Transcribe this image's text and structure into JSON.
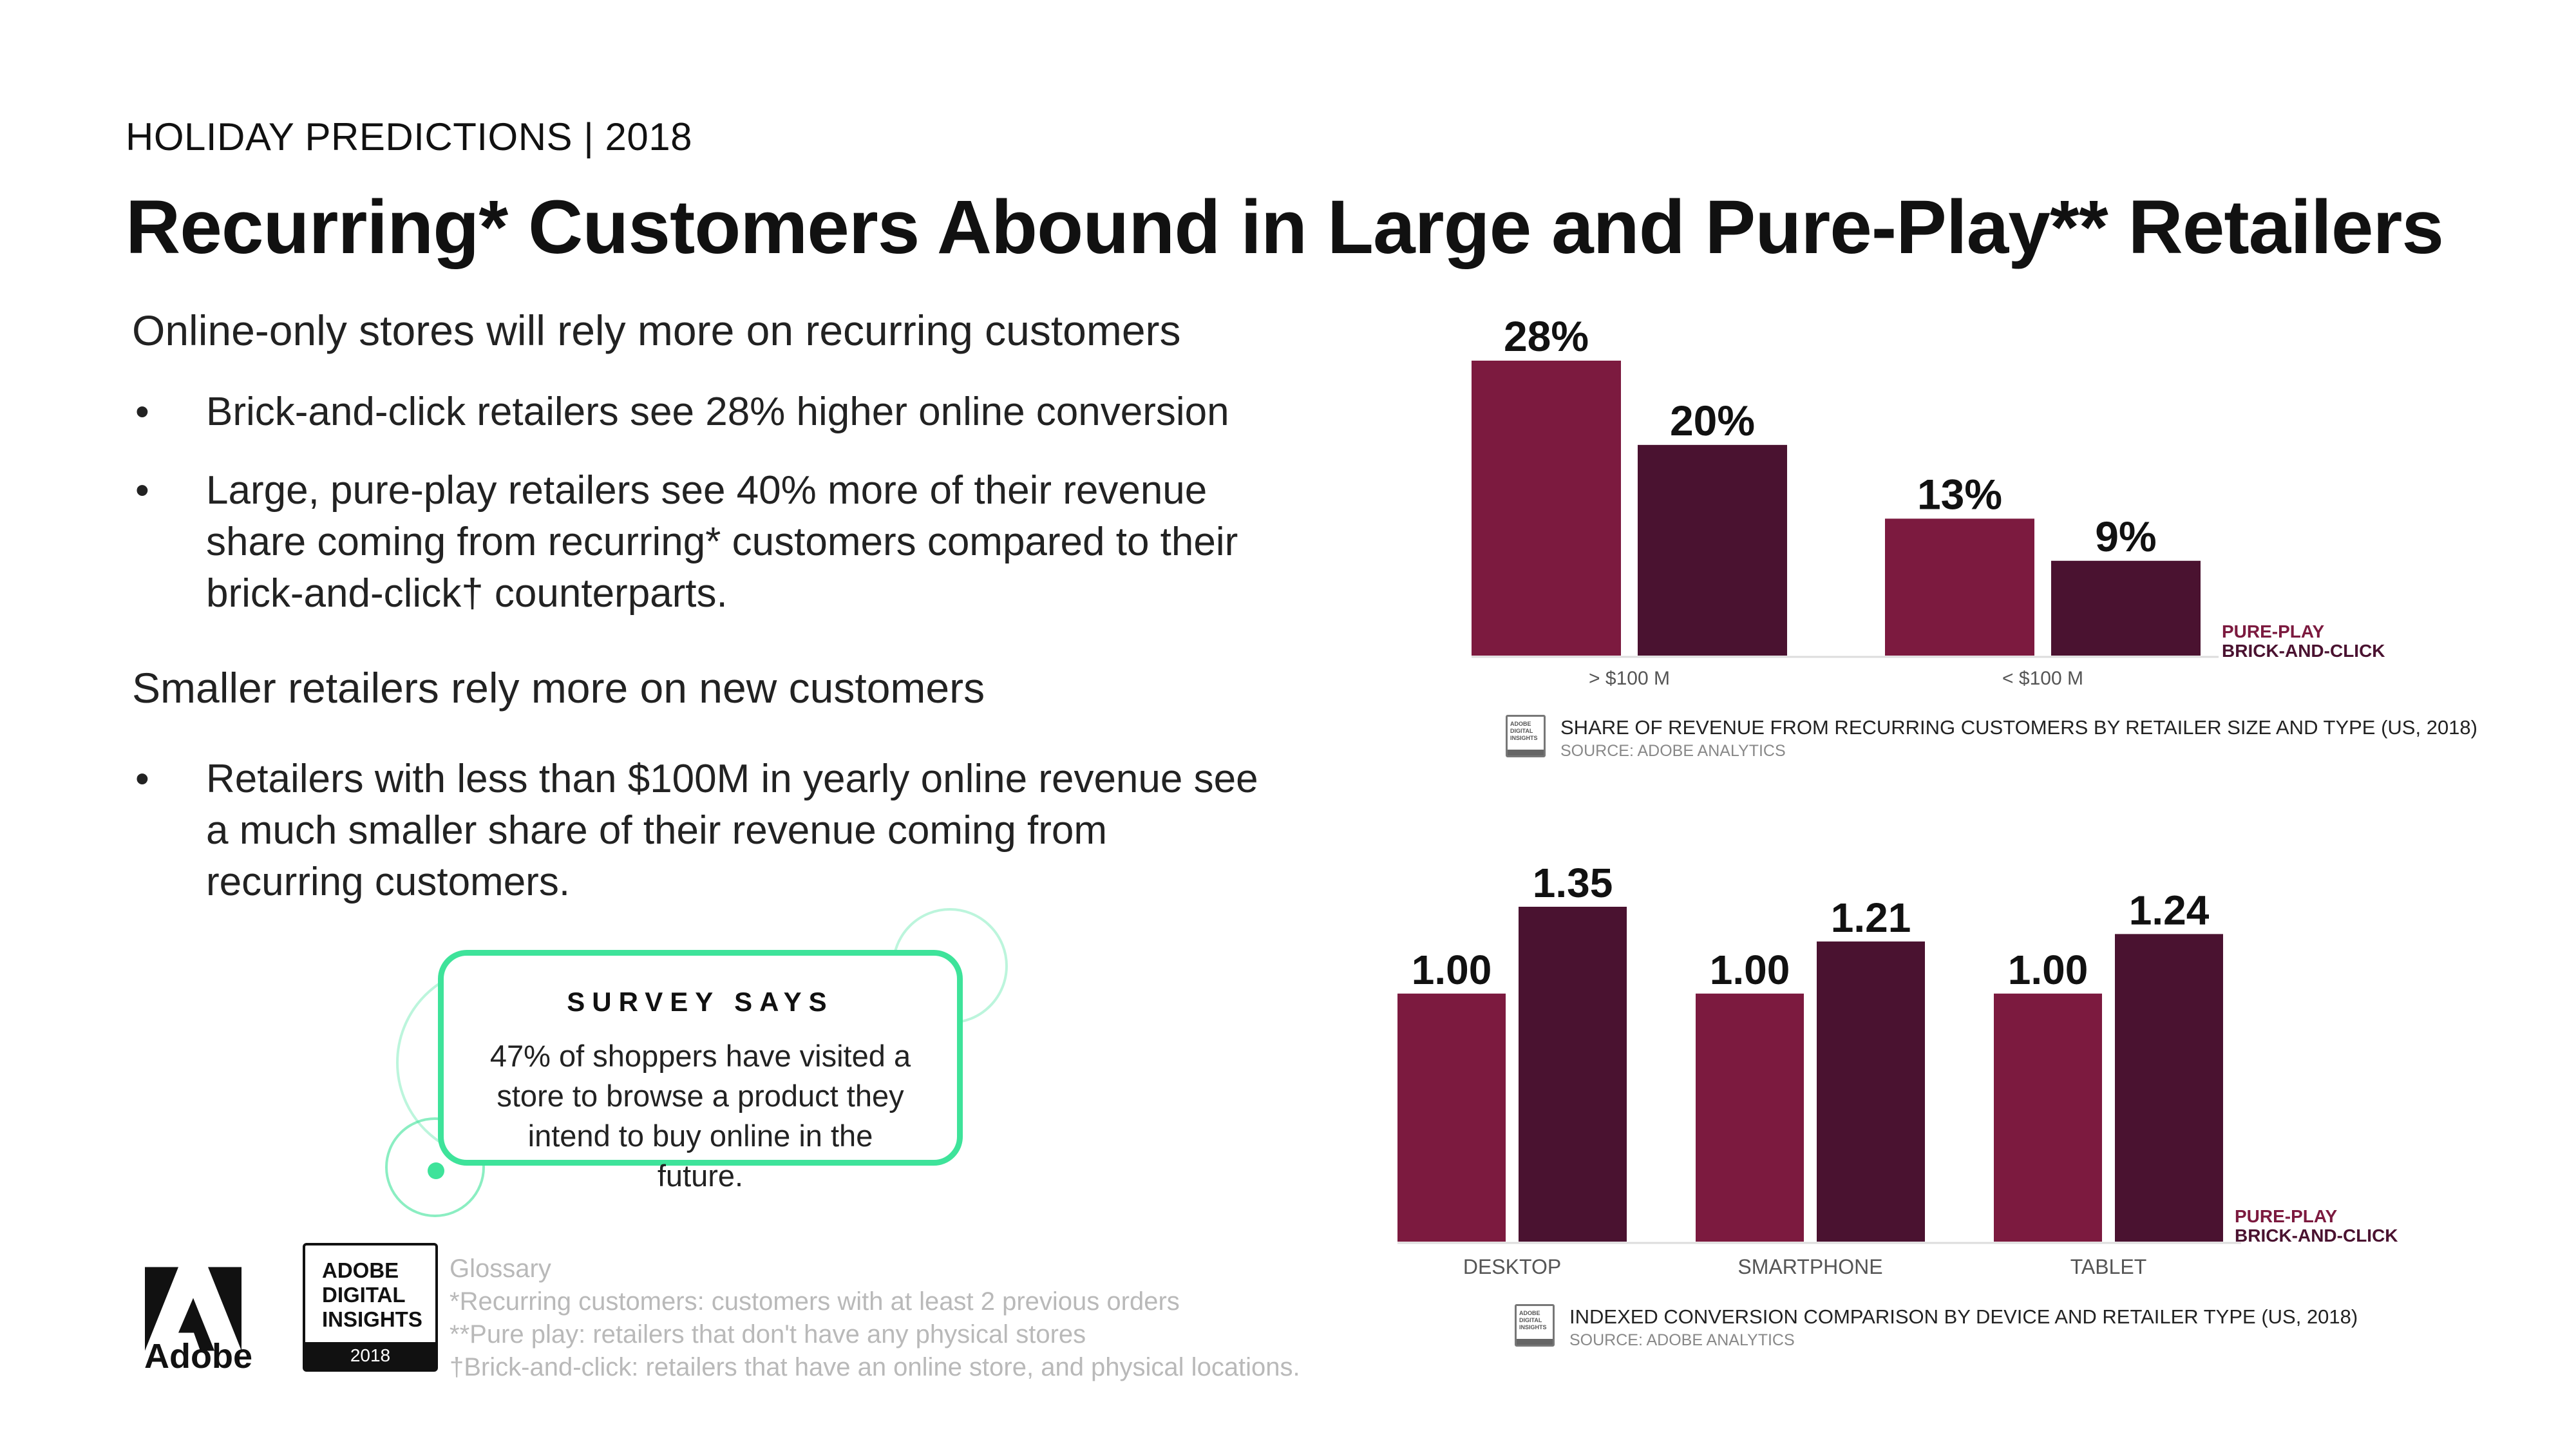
{
  "header": {
    "eyebrow": "HOLIDAY PREDICTIONS | 2018",
    "headline": "Recurring* Customers Abound in Large and Pure-Play** Retailers"
  },
  "left": {
    "section1_title": "Online-only stores will rely more on recurring customers",
    "section1_bullets": [
      "Brick-and-click retailers see 28% higher online conversion",
      "Large, pure-play retailers see 40% more of their revenue share coming from recurring* customers compared to their brick-and-click† counterparts."
    ],
    "section2_title": "Smaller retailers rely more on new customers",
    "section2_bullets": [
      "Retailers with less than $100M in yearly online revenue see a much smaller share of their revenue coming from recurring customers."
    ],
    "bullet_glyph": "•"
  },
  "survey": {
    "title": "SURVEY SAYS",
    "body": "47% of shoppers have visited a store to browse a product they intend to buy online in the future."
  },
  "branding": {
    "adobe_word": "Adobe",
    "adi_lines": [
      "ADOBE",
      "DIGITAL",
      "INSIGHTS"
    ],
    "adi_year": "2018"
  },
  "glossary": {
    "title": "Glossary",
    "items": [
      "*Recurring customers: customers with at least 2 previous orders",
      "**Pure play: retailers that don't have any physical stores",
      "†Brick-and-click: retailers that have an online store, and physical locations."
    ]
  },
  "colors": {
    "pure_play": "#7c1a3f",
    "brick_click": "#4a1230",
    "survey_green": "#3ee39a"
  },
  "caption_icon": {
    "lines": [
      "ADOBE",
      "DIGITAL",
      "INSIGHTS"
    ]
  },
  "chart_data": [
    {
      "type": "bar",
      "title": "SHARE OF REVENUE FROM RECURRING CUSTOMERS BY RETAILER SIZE AND TYPE (US, 2018)",
      "source": "SOURCE: ADOBE ANALYTICS",
      "categories": [
        "> $100 M",
        "< $100 M"
      ],
      "series": [
        {
          "name": "PURE-PLAY",
          "values": [
            28,
            13
          ],
          "labels": [
            "28%",
            "13%"
          ]
        },
        {
          "name": "BRICK-AND-CLICK",
          "values": [
            20,
            9
          ],
          "labels": [
            "20%",
            "9%"
          ]
        }
      ],
      "ylim": [
        0,
        28
      ],
      "legend": "right"
    },
    {
      "type": "bar",
      "title": "INDEXED CONVERSION COMPARISON BY DEVICE AND RETAILER TYPE (US, 2018)",
      "source": "SOURCE: ADOBE ANALYTICS",
      "categories": [
        "DESKTOP",
        "SMARTPHONE",
        "TABLET"
      ],
      "series": [
        {
          "name": "PURE-PLAY",
          "values": [
            1.0,
            1.0,
            1.0
          ],
          "labels": [
            "1.00",
            "1.00",
            "1.00"
          ]
        },
        {
          "name": "BRICK-AND-CLICK",
          "values": [
            1.35,
            1.21,
            1.24
          ],
          "labels": [
            "1.35",
            "1.21",
            "1.24"
          ]
        }
      ],
      "ylim": [
        0,
        1.35
      ],
      "legend": "right"
    }
  ]
}
